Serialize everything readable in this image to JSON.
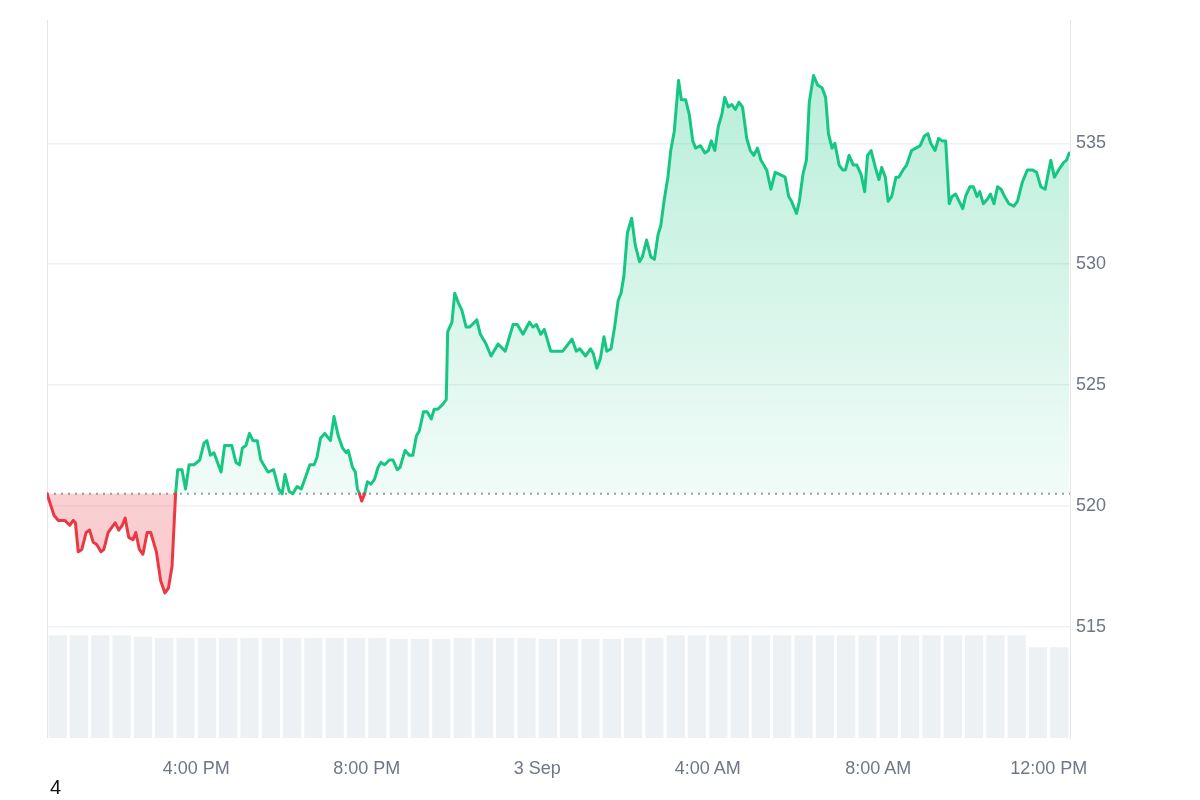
{
  "chart_data": {
    "type": "area",
    "xlim": [
      "--09-02T12:30",
      "--09-03T12:30"
    ],
    "xticks": [
      {
        "value": "--09-02T16:00",
        "label": "4:00 PM"
      },
      {
        "value": "--09-02T20:00",
        "label": "8:00 PM"
      },
      {
        "value": "--09-03T00:00",
        "label": "3 Sep"
      },
      {
        "value": "--09-03T04:00",
        "label": "4:00 AM"
      },
      {
        "value": "--09-03T08:00",
        "label": "8:00 AM"
      },
      {
        "value": "--09-03T12:00",
        "label": "12:00 PM"
      }
    ],
    "ylim": [
      510.4,
      540.1
    ],
    "yticks": [
      515,
      520,
      525,
      530,
      535
    ],
    "grid": "y",
    "marker": "none",
    "ref_lines": [
      {
        "axis": "y",
        "value": 520.5,
        "line_style": "dotted",
        "color": "#9a9ea6"
      }
    ],
    "annotations": [
      "4"
    ],
    "series": [
      {
        "color": "#ea3943",
        "x": [
          "--09-02T12:30",
          "--09-02T12:40",
          "--09-02T12:46",
          "--09-02T12:55",
          "--09-02T13:02",
          "--09-02T13:07",
          "--09-02T13:10",
          "--09-02T13:14",
          "--09-02T13:19",
          "--09-02T13:25",
          "--09-02T13:30",
          "--09-02T13:35",
          "--09-02T13:40",
          "--09-02T13:46",
          "--09-02T13:50",
          "--09-02T13:56",
          "--09-02T14:01",
          "--09-02T14:06",
          "--09-02T14:11",
          "--09-02T14:16",
          "--09-02T14:20",
          "--09-02T14:25",
          "--09-02T14:31",
          "--09-02T14:35",
          "--09-02T14:40",
          "--09-02T14:45",
          "--09-02T14:51",
          "--09-02T14:56",
          "--09-02T15:04",
          "--09-02T15:10",
          "--09-02T15:16",
          "--09-02T15:21",
          "--09-02T15:26",
          "--09-02T15:31"
        ],
        "values": [
          520.5,
          519.6,
          519.4,
          519.4,
          519.2,
          519.4,
          519.3,
          518.1,
          518.2,
          518.9,
          519.0,
          518.5,
          518.4,
          518.1,
          518.2,
          518.9,
          519.1,
          519.3,
          519.0,
          519.2,
          519.5,
          518.7,
          518.6,
          518.9,
          518.2,
          518.0,
          518.9,
          518.9,
          518.1,
          516.9,
          516.4,
          516.6,
          517.5,
          520.5
        ]
      },
      {
        "type": "line",
        "color": "#ea3943",
        "x": [
          "--09-02T19:50",
          "--09-02T19:53",
          "--09-02T19:57"
        ],
        "values": [
          520.5,
          520.2,
          520.5
        ]
      },
      {
        "color": "#16c784",
        "x": [
          "--09-02T15:31",
          "--09-02T15:34",
          "--09-02T15:40",
          "--09-02T15:45",
          "--09-02T15:50",
          "--09-02T15:57",
          "--09-02T16:05",
          "--09-02T16:11",
          "--09-02T16:15",
          "--09-02T16:20",
          "--09-02T16:25",
          "--09-02T16:35",
          "--09-02T16:40",
          "--09-02T16:50",
          "--09-02T16:56",
          "--09-02T17:01",
          "--09-02T17:05",
          "--09-02T17:10",
          "--09-02T17:15",
          "--09-02T17:20",
          "--09-02T17:26",
          "--09-02T17:31",
          "--09-02T17:41",
          "--09-02T17:49",
          "--09-02T17:56",
          "--09-02T18:01",
          "--09-02T18:05",
          "--09-02T18:11",
          "--09-02T18:16",
          "--09-02T18:22",
          "--09-02T18:28",
          "--09-02T18:40",
          "--09-02T18:46",
          "--09-02T18:50",
          "--09-02T18:55",
          "--09-02T19:01",
          "--09-02T19:09",
          "--09-02T19:14",
          "--09-02T19:20",
          "--09-02T19:26",
          "--09-02T19:31",
          "--09-02T19:34",
          "--09-02T19:40",
          "--09-02T19:44",
          "--09-02T19:47",
          "--09-02T19:50",
          "--09-02T19:53",
          "--09-02T19:57",
          "--09-02T20:01",
          "--09-02T20:06",
          "--09-02T20:11",
          "--09-02T20:16",
          "--09-02T20:20",
          "--09-02T20:25",
          "--09-02T20:32",
          "--09-02T20:37",
          "--09-02T20:43",
          "--09-02T20:47",
          "--09-02T20:54",
          "--09-02T21:00",
          "--09-02T21:05",
          "--09-02T21:10",
          "--09-02T21:14",
          "--09-02T21:20",
          "--09-02T21:25",
          "--09-02T21:31",
          "--09-02T21:35",
          "--09-02T21:40",
          "--09-02T21:47",
          "--09-02T21:52",
          "--09-02T21:54",
          "--09-02T22:00",
          "--09-02T22:04",
          "--09-02T22:09",
          "--09-02T22:14",
          "--09-02T22:20",
          "--09-02T22:25",
          "--09-02T22:32",
          "--09-02T22:35",
          "--09-02T22:40",
          "--09-02T22:48",
          "--09-02T22:55",
          "--09-02T23:05",
          "--09-02T23:15",
          "--09-02T23:19",
          "--09-02T23:26",
          "--09-02T23:32",
          "--09-02T23:40",
          "--09-02T23:49",
          "--09-02T23:54",
          "--09-02T23:59",
          "--09-03T00:05",
          "--09-03T00:10",
          "--09-03T00:19",
          "--09-03T00:24",
          "--09-03T00:36",
          "--09-03T00:49",
          "--09-03T00:55",
          "--09-03T01:00",
          "--09-03T01:08",
          "--09-03T01:15",
          "--09-03T01:19",
          "--09-03T01:24",
          "--09-03T01:29",
          "--09-03T01:34",
          "--09-03T01:38",
          "--09-03T01:44",
          "--09-03T01:49",
          "--09-03T01:54",
          "--09-03T01:58",
          "--09-03T02:02",
          "--09-03T02:07",
          "--09-03T02:13",
          "--09-03T02:18",
          "--09-03T02:24",
          "--09-03T02:28",
          "--09-03T02:34",
          "--09-03T02:40",
          "--09-03T02:45",
          "--09-03T02:50",
          "--09-03T02:54",
          "--09-03T02:59",
          "--09-03T03:04",
          "--09-03T03:08",
          "--09-03T03:13",
          "--09-03T03:19",
          "--09-03T03:23",
          "--09-03T03:29",
          "--09-03T03:34",
          "--09-03T03:39",
          "--09-03T03:43",
          "--09-03T03:50",
          "--09-03T03:56",
          "--09-03T04:01",
          "--09-03T04:05",
          "--09-03T04:10",
          "--09-03T04:15",
          "--09-03T04:20",
          "--09-03T04:24",
          "--09-03T04:29",
          "--09-03T04:34",
          "--09-03T04:39",
          "--09-03T04:44",
          "--09-03T04:49",
          "--09-03T04:55",
          "--09-03T05:00",
          "--09-03T05:05",
          "--09-03T05:10",
          "--09-03T05:15",
          "--09-03T05:23",
          "--09-03T05:29",
          "--09-03T05:35",
          "--09-03T05:42",
          "--09-03T05:49",
          "--09-03T05:54",
          "--09-03T05:58",
          "--09-03T06:05",
          "--09-03T06:09",
          "--09-03T06:14",
          "--09-03T06:19",
          "--09-03T06:23",
          "--09-03T06:29",
          "--09-03T06:35",
          "--09-03T06:41",
          "--09-03T06:46",
          "--09-03T06:50",
          "--09-03T06:55",
          "--09-03T06:59",
          "--09-03T07:05",
          "--09-03T07:10",
          "--09-03T07:14",
          "--09-03T07:19",
          "--09-03T07:25",
          "--09-03T07:30",
          "--09-03T07:36",
          "--09-03T07:41",
          "--09-03T07:45",
          "--09-03T07:50",
          "--09-03T07:56",
          "--09-03T08:01",
          "--09-03T08:05",
          "--09-03T08:10",
          "--09-03T08:14",
          "--09-03T08:19",
          "--09-03T08:25",
          "--09-03T08:29",
          "--09-03T08:35",
          "--09-03T08:40",
          "--09-03T08:47",
          "--09-03T08:53",
          "--09-03T08:59",
          "--09-03T09:05",
          "--09-03T09:10",
          "--09-03T09:14",
          "--09-03T09:20",
          "--09-03T09:25",
          "--09-03T09:30",
          "--09-03T09:35",
          "--09-03T09:40",
          "--09-03T09:44",
          "--09-03T09:49",
          "--09-03T09:54",
          "--09-03T09:59",
          "--09-03T10:03",
          "--09-03T10:09",
          "--09-03T10:14",
          "--09-03T10:19",
          "--09-03T10:23",
          "--09-03T10:28",
          "--09-03T10:34",
          "--09-03T10:38",
          "--09-03T10:43",
          "--09-03T10:48",
          "--09-03T10:53",
          "--09-03T10:58",
          "--09-03T11:04",
          "--09-03T11:11",
          "--09-03T11:16",
          "--09-03T11:23",
          "--09-03T11:30",
          "--09-03T11:37",
          "--09-03T11:43",
          "--09-03T11:49",
          "--09-03T11:55",
          "--09-03T12:03",
          "--09-03T12:08",
          "--09-03T12:14",
          "--09-03T12:21",
          "--09-03T12:25",
          "--09-03T12:29"
        ],
        "values": [
          520.5,
          521.5,
          521.5,
          520.7,
          521.7,
          521.7,
          521.9,
          522.6,
          522.7,
          522.1,
          522.2,
          521.4,
          522.5,
          522.5,
          521.8,
          521.7,
          522.4,
          522.5,
          523.0,
          522.7,
          522.7,
          521.9,
          521.4,
          521.5,
          520.7,
          520.5,
          521.3,
          520.6,
          520.5,
          520.8,
          520.7,
          521.7,
          521.7,
          522.0,
          522.8,
          523.0,
          522.7,
          523.7,
          522.9,
          522.4,
          522.2,
          522.3,
          521.6,
          521.4,
          520.7,
          520.5,
          null,
          520.5,
          521.0,
          520.9,
          521.1,
          521.6,
          521.8,
          521.7,
          521.9,
          521.9,
          521.5,
          521.6,
          522.3,
          522.1,
          522.1,
          522.9,
          523.1,
          523.9,
          523.9,
          523.6,
          524.0,
          524.0,
          524.2,
          524.4,
          527.2,
          527.6,
          528.8,
          528.4,
          528.1,
          527.4,
          527.4,
          527.6,
          527.7,
          527.1,
          526.7,
          526.2,
          526.7,
          526.4,
          526.8,
          527.5,
          527.5,
          527.1,
          527.6,
          527.4,
          527.5,
          527.1,
          527.3,
          526.4,
          526.4,
          526.4,
          526.9,
          526.4,
          526.5,
          526.2,
          526.5,
          526.3,
          525.7,
          526.1,
          527.0,
          526.4,
          526.5,
          527.4,
          528.5,
          528.8,
          529.5,
          531.3,
          531.9,
          530.8,
          530.1,
          530.3,
          531.0,
          530.3,
          530.2,
          531.2,
          531.6,
          532.7,
          533.6,
          534.7,
          535.5,
          537.6,
          536.8,
          536.8,
          536.2,
          535.1,
          534.8,
          534.9,
          534.6,
          534.7,
          535.1,
          534.7,
          535.7,
          536.2,
          536.9,
          536.5,
          536.6,
          536.4,
          536.7,
          536.5,
          535.2,
          534.7,
          534.5,
          534.8,
          534.3,
          533.9,
          533.1,
          533.8,
          533.7,
          533.6,
          532.8,
          532.6,
          532.1,
          532.6,
          533.7,
          534.3,
          536.7,
          537.8,
          537.4,
          537.3,
          536.9,
          535.4,
          534.8,
          535.0,
          534.1,
          533.9,
          533.9,
          534.5,
          534.1,
          534.1,
          533.7,
          533.0,
          534.5,
          534.7,
          534.0,
          533.5,
          534.0,
          533.6,
          532.6,
          532.8,
          533.6,
          533.6,
          533.9,
          534.1,
          534.7,
          534.8,
          534.9,
          535.3,
          535.4,
          535.0,
          534.7,
          535.2,
          535.1,
          535.1,
          532.5,
          532.8,
          532.9,
          532.6,
          532.3,
          532.8,
          533.2,
          533.2,
          532.8,
          533.0,
          532.5,
          532.7,
          532.9,
          532.5,
          533.2,
          533.1,
          532.8,
          532.5,
          532.4,
          532.6,
          533.4,
          533.9,
          533.9,
          533.8,
          533.2,
          533.1,
          534.3,
          533.6,
          533.9,
          534.2,
          534.3,
          534.6
        ]
      },
      {
        "type": "bar",
        "color": "#eef1f4",
        "x": [
          "--09-02T12:45",
          "--09-02T13:15",
          "--09-02T13:45",
          "--09-02T14:15",
          "--09-02T14:45",
          "--09-02T15:15",
          "--09-02T15:45",
          "--09-02T16:15",
          "--09-02T16:45",
          "--09-02T17:15",
          "--09-02T17:45",
          "--09-02T18:15",
          "--09-02T18:45",
          "--09-02T19:15",
          "--09-02T19:45",
          "--09-02T20:15",
          "--09-02T20:45",
          "--09-02T21:15",
          "--09-02T21:45",
          "--09-02T22:15",
          "--09-02T22:45",
          "--09-02T23:15",
          "--09-02T23:45",
          "--09-03T00:15",
          "--09-03T00:45",
          "--09-03T01:15",
          "--09-03T01:45",
          "--09-03T02:15",
          "--09-03T02:45",
          "--09-03T03:15",
          "--09-03T03:45",
          "--09-03T04:15",
          "--09-03T04:45",
          "--09-03T05:15",
          "--09-03T05:45",
          "--09-03T06:15",
          "--09-03T06:45",
          "--09-03T07:15",
          "--09-03T07:45",
          "--09-03T08:15",
          "--09-03T08:45",
          "--09-03T09:15",
          "--09-03T09:45",
          "--09-03T10:15",
          "--09-03T10:45",
          "--09-03T11:15",
          "--09-03T11:45",
          "--09-03T12:15"
        ],
        "values": [
          514.65,
          514.65,
          514.65,
          514.65,
          514.6,
          514.55,
          514.55,
          514.55,
          514.55,
          514.55,
          514.55,
          514.55,
          514.55,
          514.55,
          514.55,
          514.55,
          514.5,
          514.5,
          514.5,
          514.55,
          514.55,
          514.55,
          514.55,
          514.5,
          514.5,
          514.5,
          514.5,
          514.55,
          514.55,
          514.65,
          514.65,
          514.65,
          514.65,
          514.65,
          514.65,
          514.65,
          514.65,
          514.65,
          514.65,
          514.65,
          514.65,
          514.65,
          514.65,
          514.65,
          514.65,
          514.65,
          514.15,
          514.15
        ]
      }
    ]
  }
}
